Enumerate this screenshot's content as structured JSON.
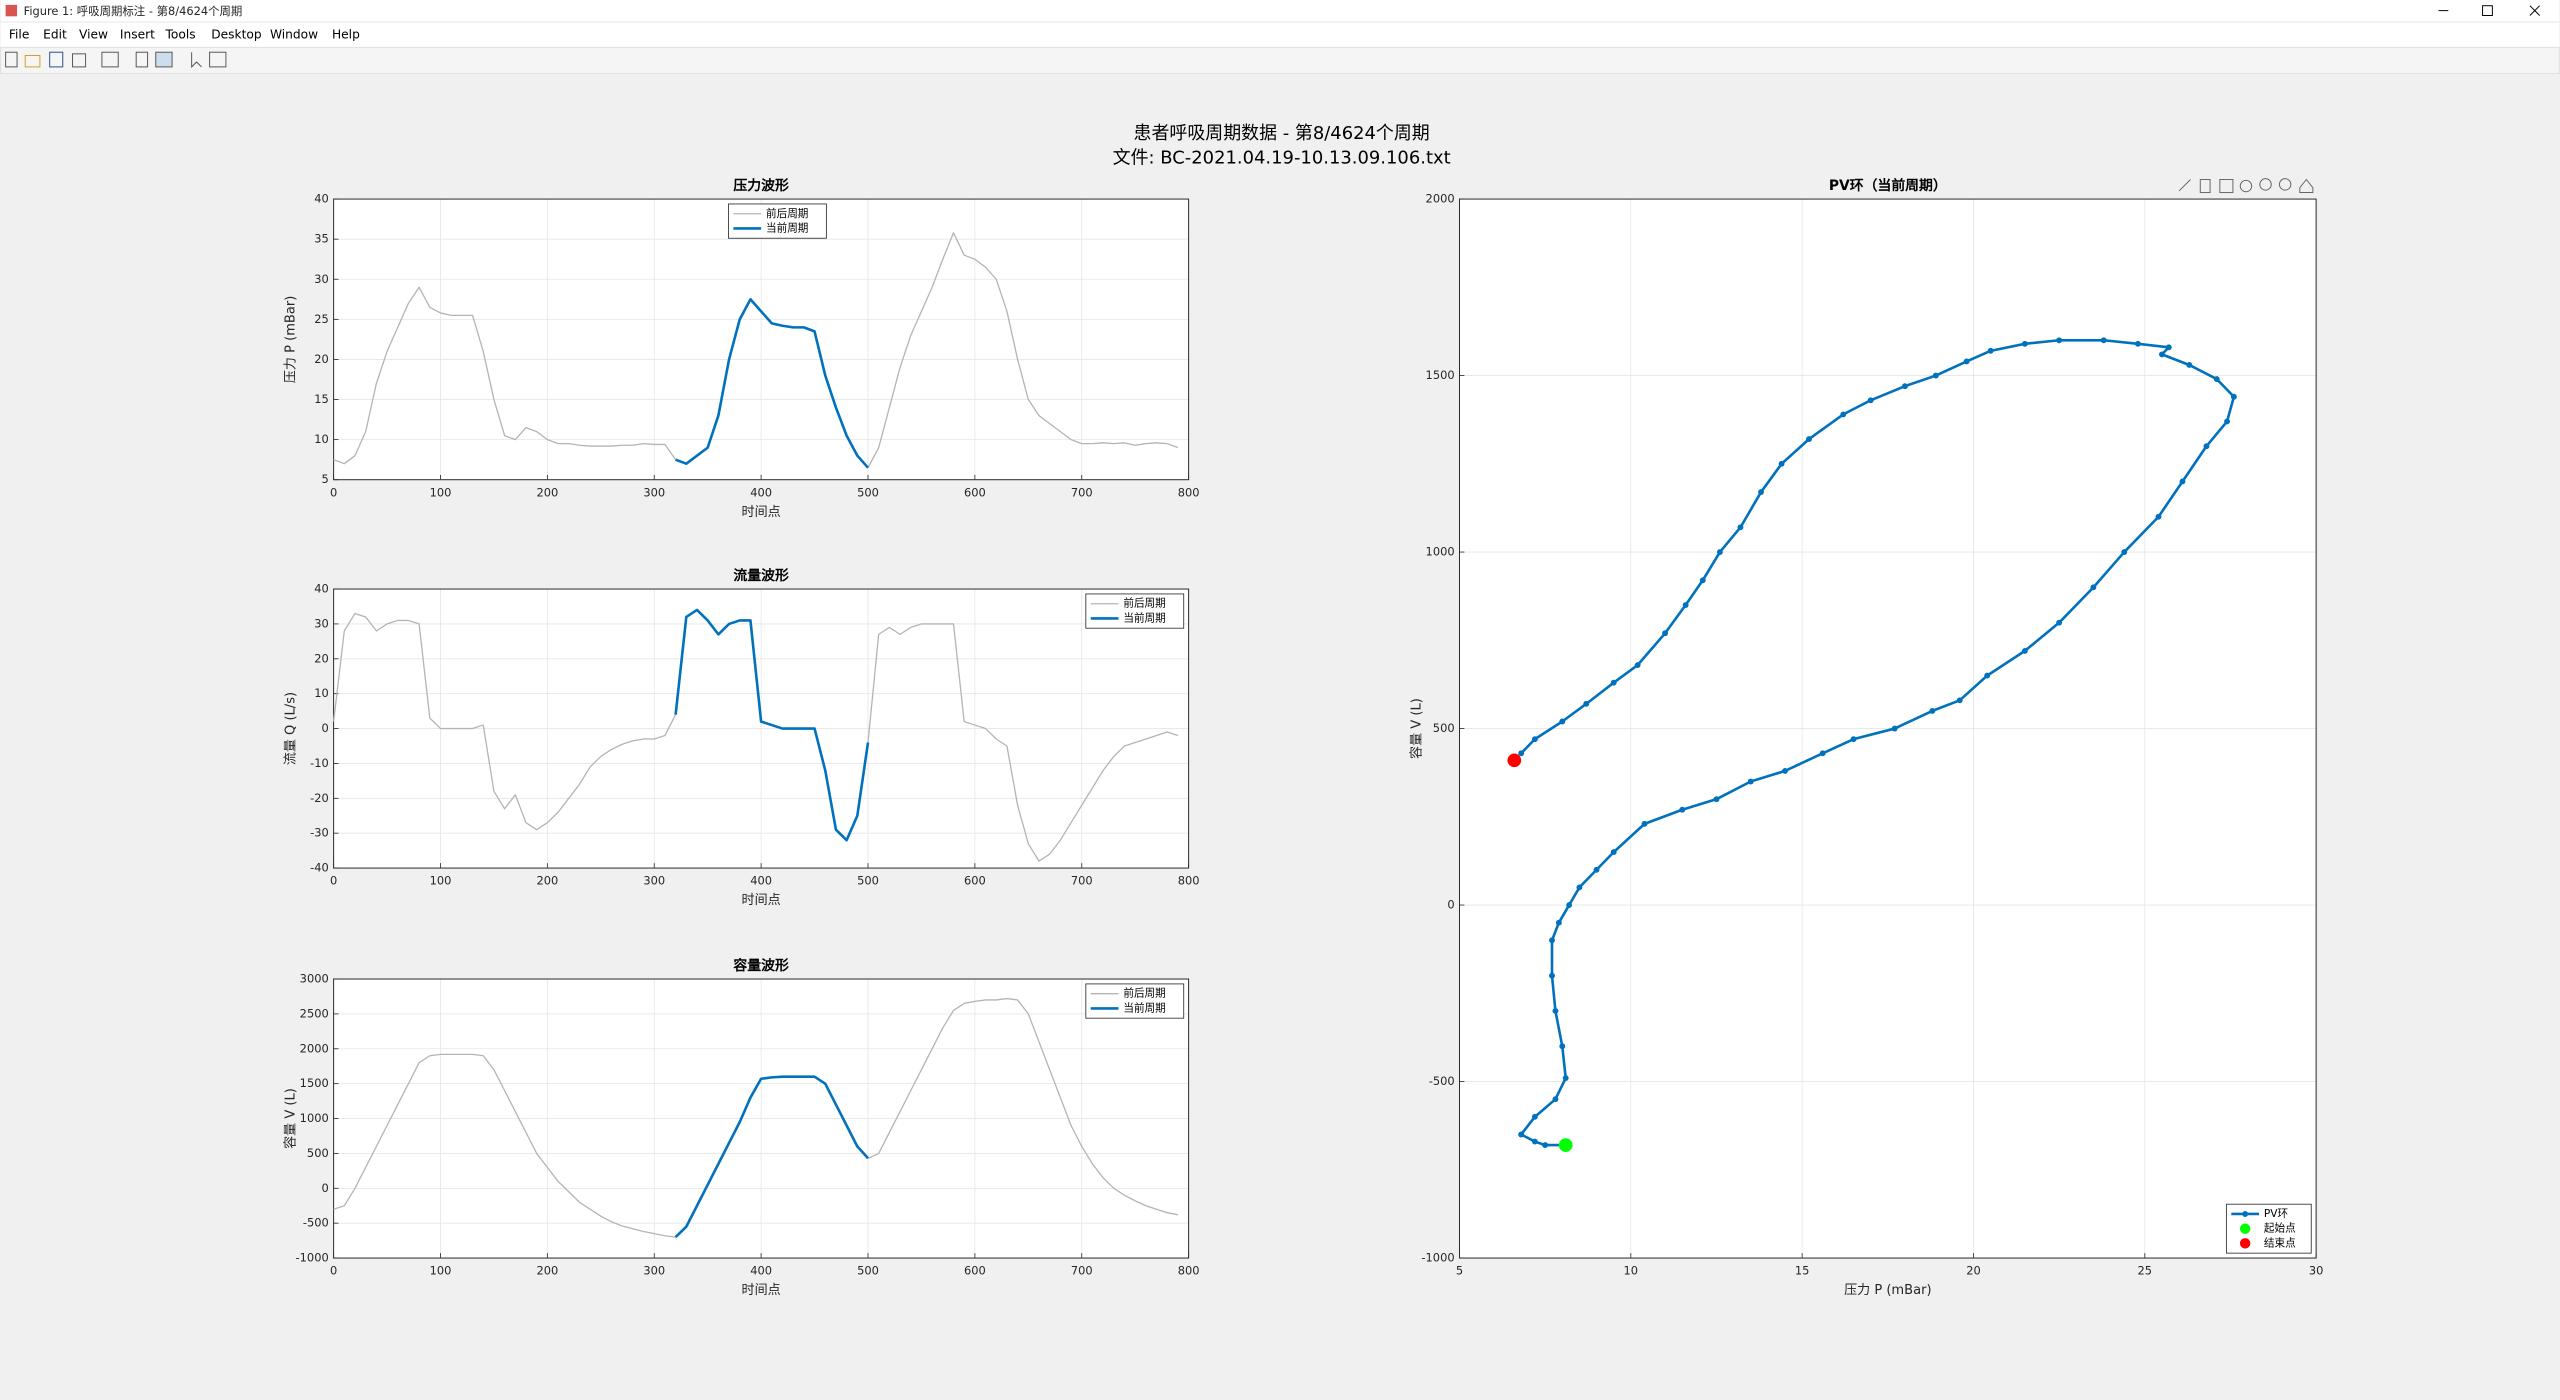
{
  "window": {
    "title": "Figure 1: 呼吸周期标注 - 第8/4624个周期",
    "menu": [
      "File",
      "Edit",
      "View",
      "Insert",
      "Tools",
      "Desktop",
      "Window",
      "Help"
    ]
  },
  "figure": {
    "title": "患者呼吸周期数据 - 第8/4624个周期",
    "subtitle": "文件: BC-2021.04.19-10.13.09.106.txt"
  },
  "chart_data": [
    {
      "type": "line",
      "title": "压力波形",
      "xlabel": "时间点",
      "ylabel": "压力 P (mBar)",
      "grid": true,
      "legend": "north",
      "xlim": [
        0,
        800
      ],
      "xticks": [
        0,
        100,
        200,
        300,
        400,
        500,
        600,
        700,
        800
      ],
      "ylim": [
        5,
        40
      ],
      "yticks": [
        5,
        10,
        15,
        20,
        25,
        30,
        35,
        40
      ],
      "x": [
        0,
        10,
        20,
        30,
        40,
        50,
        60,
        70,
        80,
        90,
        100,
        110,
        120,
        130,
        140,
        150,
        160,
        170,
        180,
        190,
        200,
        210,
        220,
        230,
        240,
        250,
        260,
        270,
        280,
        290,
        300,
        310,
        320,
        330,
        340,
        350,
        360,
        370,
        380,
        390,
        400,
        410,
        420,
        430,
        440,
        450,
        460,
        470,
        480,
        490,
        500,
        510,
        520,
        530,
        540,
        550,
        560,
        570,
        580,
        590,
        600,
        610,
        620,
        630,
        640,
        650,
        660,
        670,
        680,
        690,
        700,
        710,
        720,
        730,
        740,
        750,
        760,
        770,
        780,
        790
      ],
      "series": [
        {
          "name": "前后周期",
          "color": "#b4b4b4",
          "linewidth": 0.8,
          "values": [
            7.5,
            7,
            8,
            11,
            17,
            21,
            24,
            27,
            29,
            26.5,
            25.8,
            25.5,
            25.5,
            25.5,
            21,
            15,
            10.5,
            10,
            11.5,
            11,
            10,
            9.5,
            9.5,
            9.3,
            9.2,
            9.2,
            9.2,
            9.3,
            9.3,
            9.5,
            9.4,
            9.4,
            7.5,
            7,
            8,
            9,
            13,
            20,
            25,
            27.5,
            26,
            24.5,
            24.2,
            24,
            24,
            23.5,
            18,
            14,
            10.5,
            8,
            6.5,
            9,
            14,
            19,
            23,
            26,
            29,
            32.5,
            35.8,
            33,
            32.5,
            31.5,
            30,
            26,
            20,
            15,
            13,
            12,
            11,
            10,
            9.5,
            9.5,
            9.6,
            9.5,
            9.6,
            9.3,
            9.5,
            9.6,
            9.5,
            9
          ]
        },
        {
          "name": "当前周期",
          "color": "#0072bd",
          "linewidth": 1.6,
          "x": [
            320,
            330,
            340,
            350,
            360,
            370,
            380,
            390,
            400,
            410,
            420,
            430,
            440,
            450,
            460,
            470,
            480,
            490,
            500
          ],
          "values": [
            7.5,
            7,
            8,
            9,
            13,
            20,
            25,
            27.5,
            26,
            24.5,
            24.2,
            24,
            24,
            23.5,
            18,
            14,
            10.5,
            8,
            6.5
          ]
        }
      ]
    },
    {
      "type": "line",
      "title": "流量波形",
      "xlabel": "时间点",
      "ylabel": "流量 Q (L/s)",
      "grid": true,
      "legend": "northeast",
      "xlim": [
        0,
        800
      ],
      "xticks": [
        0,
        100,
        200,
        300,
        400,
        500,
        600,
        700,
        800
      ],
      "ylim": [
        -40,
        40
      ],
      "yticks": [
        -40,
        -30,
        -20,
        -10,
        0,
        10,
        20,
        30,
        40
      ],
      "x": [
        0,
        10,
        20,
        30,
        40,
        50,
        60,
        70,
        80,
        90,
        100,
        110,
        120,
        130,
        140,
        150,
        160,
        170,
        180,
        190,
        200,
        210,
        220,
        230,
        240,
        250,
        260,
        270,
        280,
        290,
        300,
        310,
        320,
        330,
        340,
        350,
        360,
        370,
        380,
        390,
        400,
        410,
        420,
        430,
        440,
        450,
        460,
        470,
        480,
        490,
        500,
        510,
        520,
        530,
        540,
        550,
        560,
        570,
        580,
        590,
        600,
        610,
        620,
        630,
        640,
        650,
        660,
        670,
        680,
        690,
        700,
        710,
        720,
        730,
        740,
        750,
        760,
        770,
        780,
        790
      ],
      "series": [
        {
          "name": "前后周期",
          "color": "#b4b4b4",
          "linewidth": 0.8,
          "values": [
            2,
            28,
            33,
            32,
            28,
            30,
            31,
            31,
            30,
            3,
            0,
            0,
            0,
            0,
            1,
            -18,
            -23,
            -19,
            -27,
            -29,
            -27,
            -24,
            -20,
            -16,
            -11,
            -8,
            -6,
            -4.5,
            -3.5,
            -3,
            -3,
            -2,
            4,
            32,
            34,
            31,
            27,
            30,
            31,
            31,
            2,
            1,
            0,
            0,
            0,
            0,
            -12,
            -29,
            -32,
            -25,
            -4,
            27,
            29,
            27,
            29,
            30,
            30,
            30,
            30,
            2,
            1,
            0,
            -3,
            -5,
            -22,
            -33,
            -38,
            -36,
            -32,
            -27,
            -22,
            -17,
            -12,
            -8,
            -5,
            -4,
            -3,
            -2,
            -1,
            -2
          ]
        },
        {
          "name": "当前周期",
          "color": "#0072bd",
          "linewidth": 1.6,
          "x": [
            320,
            330,
            340,
            350,
            360,
            370,
            380,
            390,
            400,
            410,
            420,
            430,
            440,
            450,
            460,
            470,
            480,
            490,
            500
          ],
          "values": [
            4,
            32,
            34,
            31,
            27,
            30,
            31,
            31,
            2,
            1,
            0,
            0,
            0,
            0,
            -12,
            -29,
            -32,
            -25,
            -4
          ]
        }
      ]
    },
    {
      "type": "line",
      "title": "容量波形",
      "xlabel": "时间点",
      "ylabel": "容量 V (L)",
      "grid": true,
      "legend": "northeast",
      "xlim": [
        0,
        800
      ],
      "xticks": [
        0,
        100,
        200,
        300,
        400,
        500,
        600,
        700,
        800
      ],
      "ylim": [
        -1000,
        3000
      ],
      "yticks": [
        -1000,
        -500,
        0,
        500,
        1000,
        1500,
        2000,
        2500,
        3000
      ],
      "x": [
        0,
        10,
        20,
        30,
        40,
        50,
        60,
        70,
        80,
        90,
        100,
        110,
        120,
        130,
        140,
        150,
        160,
        170,
        180,
        190,
        200,
        210,
        220,
        230,
        240,
        250,
        260,
        270,
        280,
        290,
        300,
        310,
        320,
        330,
        340,
        350,
        360,
        370,
        380,
        390,
        400,
        410,
        420,
        430,
        440,
        450,
        460,
        470,
        480,
        490,
        500,
        510,
        520,
        530,
        540,
        550,
        560,
        570,
        580,
        590,
        600,
        610,
        620,
        630,
        640,
        650,
        660,
        670,
        680,
        690,
        700,
        710,
        720,
        730,
        740,
        750,
        760,
        770,
        780,
        790
      ],
      "series": [
        {
          "name": "前后周期",
          "color": "#b4b4b4",
          "linewidth": 0.8,
          "values": [
            -300,
            -250,
            0,
            300,
            600,
            900,
            1200,
            1500,
            1800,
            1900,
            1920,
            1920,
            1920,
            1920,
            1900,
            1700,
            1400,
            1100,
            800,
            500,
            300,
            100,
            -50,
            -200,
            -300,
            -400,
            -480,
            -540,
            -580,
            -620,
            -650,
            -680,
            -700,
            -550,
            -250,
            50,
            350,
            650,
            950,
            1300,
            1570,
            1590,
            1600,
            1600,
            1600,
            1600,
            1500,
            1200,
            900,
            600,
            430,
            500,
            800,
            1100,
            1400,
            1700,
            2000,
            2300,
            2550,
            2650,
            2680,
            2700,
            2700,
            2720,
            2700,
            2500,
            2100,
            1700,
            1300,
            900,
            600,
            350,
            150,
            0,
            -100,
            -180,
            -250,
            -300,
            -350,
            -380
          ]
        },
        {
          "name": "当前周期",
          "color": "#0072bd",
          "linewidth": 1.6,
          "x": [
            320,
            330,
            340,
            350,
            360,
            370,
            380,
            390,
            400,
            410,
            420,
            430,
            440,
            450,
            460,
            470,
            480,
            490,
            500
          ],
          "values": [
            -700,
            -550,
            -250,
            50,
            350,
            650,
            950,
            1300,
            1570,
            1590,
            1600,
            1600,
            1600,
            1600,
            1500,
            1200,
            900,
            600,
            430
          ]
        }
      ]
    },
    {
      "type": "line",
      "title": "PV环（当前周期）",
      "xlabel": "压力 P (mBar)",
      "ylabel": "容量 V (L)",
      "grid": true,
      "legend": "southeast",
      "xlim": [
        5,
        30
      ],
      "xticks": [
        5,
        10,
        15,
        20,
        25,
        30
      ],
      "ylim": [
        -1000,
        2000
      ],
      "yticks": [
        -1000,
        -500,
        0,
        500,
        1000,
        1500,
        2000
      ],
      "series": [
        {
          "name": "PV环",
          "color": "#0072bd",
          "linewidth": 1.6,
          "marker": "o",
          "x": [
            8,
            7.5,
            7.2,
            6.8,
            7.2,
            7.8,
            8.1,
            8,
            7.8,
            7.7,
            7.7,
            7.9,
            8.2,
            8.5,
            9,
            9.5,
            10.4,
            11.5,
            12.5,
            13.5,
            14.5,
            15.6,
            16.5,
            17.7,
            18.8,
            19.6,
            20.4,
            21.5,
            22.5,
            23.5,
            24.4,
            25.4,
            26.1,
            26.8,
            27.4,
            27.6,
            27.1,
            26.3,
            25.5,
            25.7,
            24.8,
            23.8,
            22.5,
            21.5,
            20.5,
            19.8,
            18.9,
            18,
            17,
            16.2,
            15.2,
            14.4,
            13.8,
            13.2,
            12.6,
            12.1,
            11.6,
            11,
            10.2,
            9.5,
            8.7,
            8,
            7.2,
            6.8
          ],
          "values": [
            -680,
            -680,
            -670,
            -650,
            -600,
            -550,
            -490,
            -400,
            -300,
            -200,
            -100,
            -50,
            0,
            50,
            100,
            150,
            230,
            270,
            300,
            350,
            380,
            430,
            470,
            500,
            550,
            580,
            650,
            720,
            800,
            900,
            1000,
            1100,
            1200,
            1300,
            1370,
            1440,
            1490,
            1530,
            1560,
            1580,
            1590,
            1600,
            1600,
            1590,
            1570,
            1540,
            1500,
            1470,
            1430,
            1390,
            1320,
            1250,
            1170,
            1070,
            1000,
            920,
            850,
            770,
            680,
            630,
            570,
            520,
            470,
            430
          ]
        },
        {
          "name": "起始点",
          "color": "#00ff00",
          "marker": "o",
          "linestyle": "none",
          "x": [
            8.1
          ],
          "values": [
            -680
          ]
        },
        {
          "name": "结束点",
          "color": "#ff0000",
          "marker": "o",
          "linestyle": "none",
          "x": [
            6.6
          ],
          "values": [
            410
          ]
        }
      ]
    }
  ]
}
